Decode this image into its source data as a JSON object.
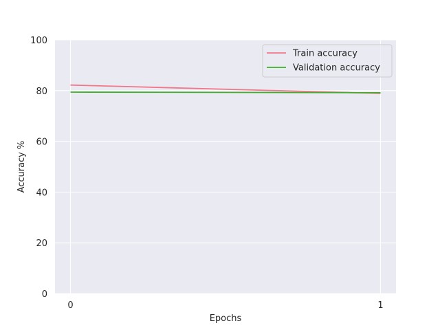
{
  "chart_data": {
    "type": "line",
    "title": "",
    "xlabel": "Epochs",
    "ylabel": "Accuracy %",
    "x": [
      0,
      1
    ],
    "xlim": [
      -0.05,
      1.05
    ],
    "ylim": [
      0,
      100
    ],
    "xticks": [
      0,
      1
    ],
    "yticks": [
      0,
      20,
      40,
      60,
      80,
      100
    ],
    "grid": true,
    "legend_position": "top-right",
    "series": [
      {
        "name": "Train accuracy",
        "values": [
          82.2,
          78.9
        ],
        "color": "#f0788a"
      },
      {
        "name": "Validation accuracy",
        "values": [
          79.4,
          79.2
        ],
        "color": "#3fae2a"
      }
    ],
    "background_color": "#eaeaf2",
    "grid_color": "#ffffff"
  }
}
